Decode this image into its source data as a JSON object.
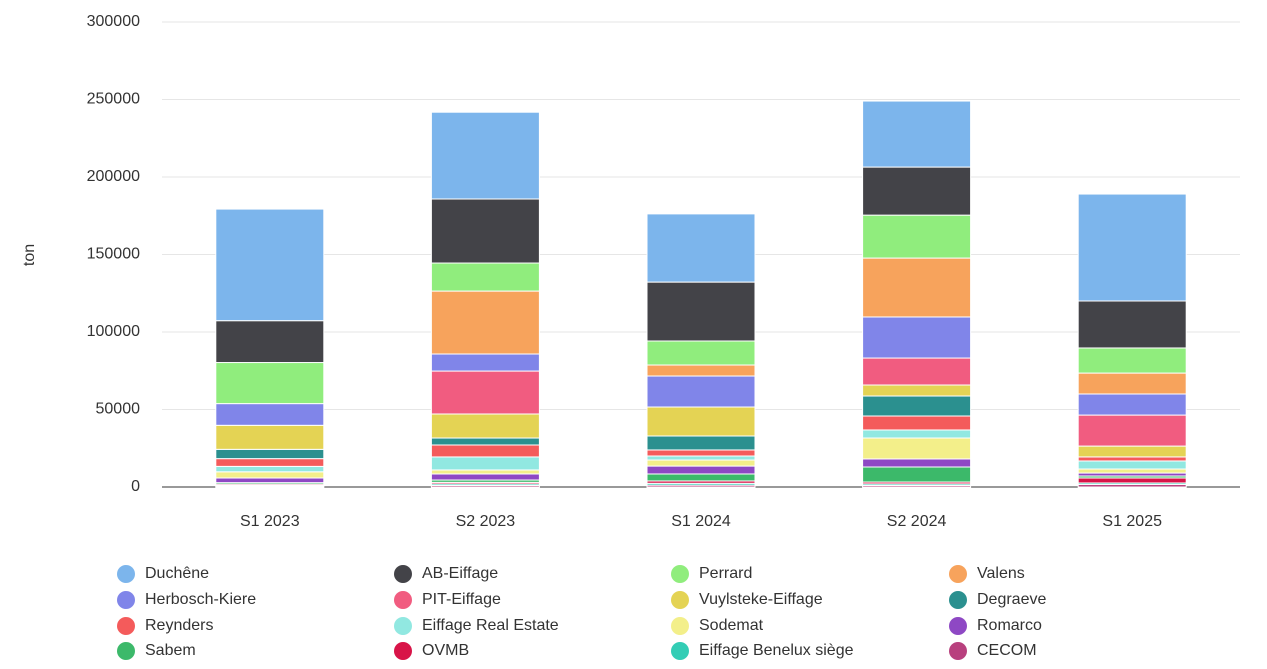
{
  "chart_data": {
    "type": "stacked_bar",
    "y_label": "ton",
    "categories": [
      "S1 2023",
      "S2 2023",
      "S1 2024",
      "S2 2024",
      "S1 2025"
    ],
    "ylim": [
      0,
      300000
    ],
    "yticks": [
      0,
      50000,
      100000,
      150000,
      200000,
      250000,
      300000
    ],
    "grid": true,
    "series": [
      {
        "name": "Duchêne",
        "color": "#7cb5ec",
        "values": [
          72000,
          56000,
          44000,
          42600,
          69000
        ]
      },
      {
        "name": "AB-Eiffage",
        "color": "#434348",
        "values": [
          27000,
          41300,
          38000,
          31000,
          30300
        ]
      },
      {
        "name": "Perrard",
        "color": "#90ed7d",
        "values": [
          26500,
          18100,
          15500,
          27700,
          16200
        ]
      },
      {
        "name": "Valens",
        "color": "#f7a35c",
        "values": [
          0,
          40600,
          7100,
          38000,
          13500
        ]
      },
      {
        "name": "Herbosch-Kiere",
        "color": "#8085e9",
        "values": [
          14000,
          11000,
          20000,
          26500,
          13600
        ]
      },
      {
        "name": "PIT-Eiffage",
        "color": "#f15c80",
        "values": [
          0,
          27700,
          0,
          17400,
          20000
        ]
      },
      {
        "name": "Vuylsteke-Eiffage",
        "color": "#e4d354",
        "values": [
          15500,
          15500,
          18700,
          7100,
          7000
        ]
      },
      {
        "name": "Degraeve",
        "color": "#2b908f",
        "values": [
          6000,
          4500,
          9000,
          12900,
          0
        ]
      },
      {
        "name": "Reynders",
        "color": "#f45b5b",
        "values": [
          5000,
          7700,
          3900,
          9000,
          2600
        ]
      },
      {
        "name": "Eiffage Real Estate",
        "color": "#91e8e1",
        "values": [
          3500,
          8400,
          2600,
          5200,
          5200
        ]
      },
      {
        "name": "Sodemat",
        "color": "#f3ef8a",
        "values": [
          4000,
          2600,
          3900,
          13500,
          2600
        ]
      },
      {
        "name": "Romarco",
        "color": "#8e48c4",
        "values": [
          3000,
          3900,
          5100,
          5200,
          1900
        ]
      },
      {
        "name": "Sabem",
        "color": "#3cb96a",
        "values": [
          1000,
          1500,
          4500,
          9700,
          1300
        ]
      },
      {
        "name": "OVMB",
        "color": "#d81448",
        "values": [
          800,
          1000,
          1500,
          1200,
          3200
        ]
      },
      {
        "name": "Eiffage Benelux siège",
        "color": "#33cdb5",
        "values": [
          500,
          1000,
          1200,
          1000,
          1000
        ]
      },
      {
        "name": "CECOM",
        "color": "#b8407e",
        "values": [
          500,
          1000,
          1200,
          1000,
          1600
        ]
      }
    ]
  }
}
